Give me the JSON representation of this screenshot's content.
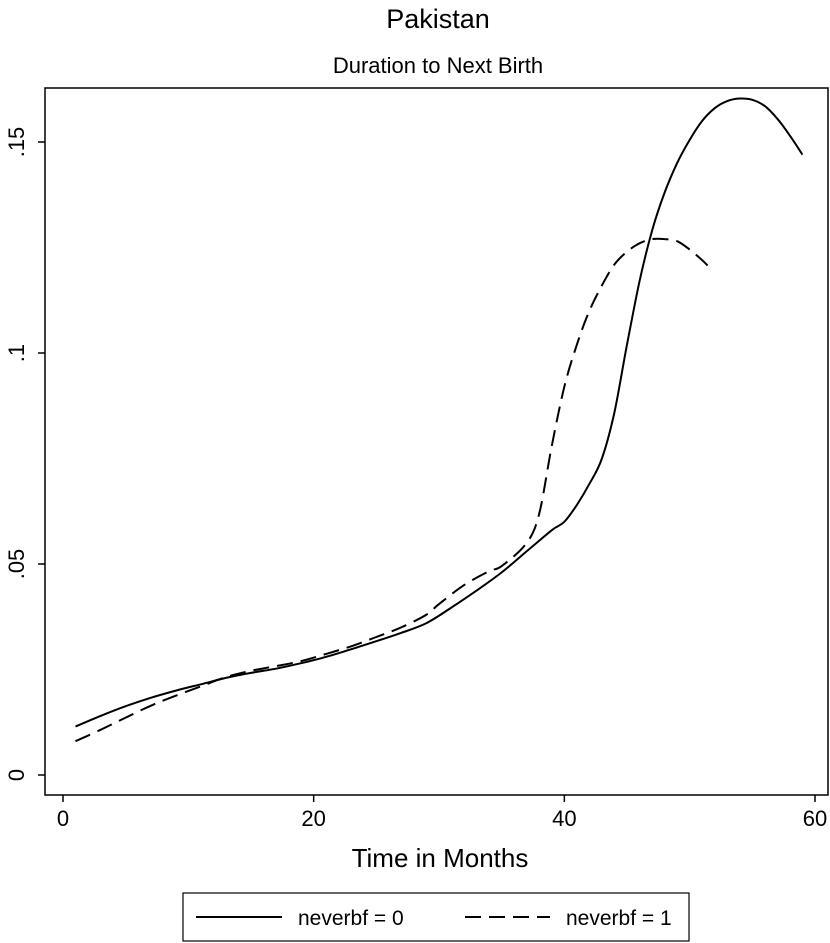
{
  "chart_data": {
    "type": "line",
    "title": "Pakistan",
    "subtitle": "Duration to Next Birth",
    "xlabel": "Time in Months",
    "ylabel": "",
    "xlim": [
      0,
      60
    ],
    "ylim": [
      0,
      0.16
    ],
    "xticks": [
      0,
      20,
      40,
      60
    ],
    "xtick_labels": [
      "0",
      "20",
      "40",
      "60"
    ],
    "yticks": [
      0,
      0.05,
      0.1,
      0.15
    ],
    "ytick_labels": [
      "0",
      ".05",
      ".1",
      ".15"
    ],
    "grid": false,
    "legend_position": "bottom",
    "series": [
      {
        "name": "neverbf = 0",
        "style": "solid",
        "color": "#000000",
        "points": [
          [
            1,
            0.0115
          ],
          [
            3,
            0.014
          ],
          [
            5,
            0.0163
          ],
          [
            7,
            0.0183
          ],
          [
            9,
            0.02
          ],
          [
            11,
            0.0215
          ],
          [
            13,
            0.023
          ],
          [
            15,
            0.0242
          ],
          [
            17,
            0.0252
          ],
          [
            19,
            0.0265
          ],
          [
            21,
            0.028
          ],
          [
            23,
            0.0298
          ],
          [
            25,
            0.0317
          ],
          [
            27,
            0.0337
          ],
          [
            29,
            0.036
          ],
          [
            31,
            0.0397
          ],
          [
            33,
            0.0437
          ],
          [
            35,
            0.048
          ],
          [
            37,
            0.053
          ],
          [
            39,
            0.058
          ],
          [
            40,
            0.06
          ],
          [
            41,
            0.064
          ],
          [
            42,
            0.069
          ],
          [
            43,
            0.075
          ],
          [
            44,
            0.086
          ],
          [
            45,
            0.102
          ],
          [
            46,
            0.117
          ],
          [
            47,
            0.129
          ],
          [
            48,
            0.138
          ],
          [
            49,
            0.145
          ],
          [
            50,
            0.1505
          ],
          [
            51,
            0.155
          ],
          [
            52,
            0.158
          ],
          [
            53,
            0.1597
          ],
          [
            54,
            0.1603
          ],
          [
            55,
            0.16
          ],
          [
            56,
            0.1585
          ],
          [
            57,
            0.1555
          ],
          [
            58,
            0.1515
          ],
          [
            59,
            0.147
          ]
        ]
      },
      {
        "name": "neverbf = 1",
        "style": "dashed",
        "color": "#000000",
        "points": [
          [
            1,
            0.008
          ],
          [
            3,
            0.0107
          ],
          [
            5,
            0.0136
          ],
          [
            7,
            0.0164
          ],
          [
            9,
            0.0188
          ],
          [
            11,
            0.021
          ],
          [
            13,
            0.0232
          ],
          [
            15,
            0.0247
          ],
          [
            17,
            0.0258
          ],
          [
            19,
            0.027
          ],
          [
            21,
            0.0287
          ],
          [
            23,
            0.0305
          ],
          [
            25,
            0.0327
          ],
          [
            27,
            0.035
          ],
          [
            29,
            0.038
          ],
          [
            30,
            0.0405
          ],
          [
            32,
            0.045
          ],
          [
            34,
            0.0483
          ],
          [
            35,
            0.0495
          ],
          [
            37,
            0.055
          ],
          [
            38,
            0.062
          ],
          [
            39,
            0.078
          ],
          [
            40,
            0.092
          ],
          [
            41,
            0.102
          ],
          [
            42,
            0.11
          ],
          [
            43,
            0.116
          ],
          [
            44,
            0.121
          ],
          [
            45,
            0.124
          ],
          [
            46,
            0.126
          ],
          [
            47,
            0.127
          ],
          [
            48,
            0.127
          ],
          [
            49,
            0.1265
          ],
          [
            50,
            0.1245
          ],
          [
            51,
            0.122
          ],
          [
            51.5,
            0.1205
          ]
        ]
      }
    ]
  }
}
